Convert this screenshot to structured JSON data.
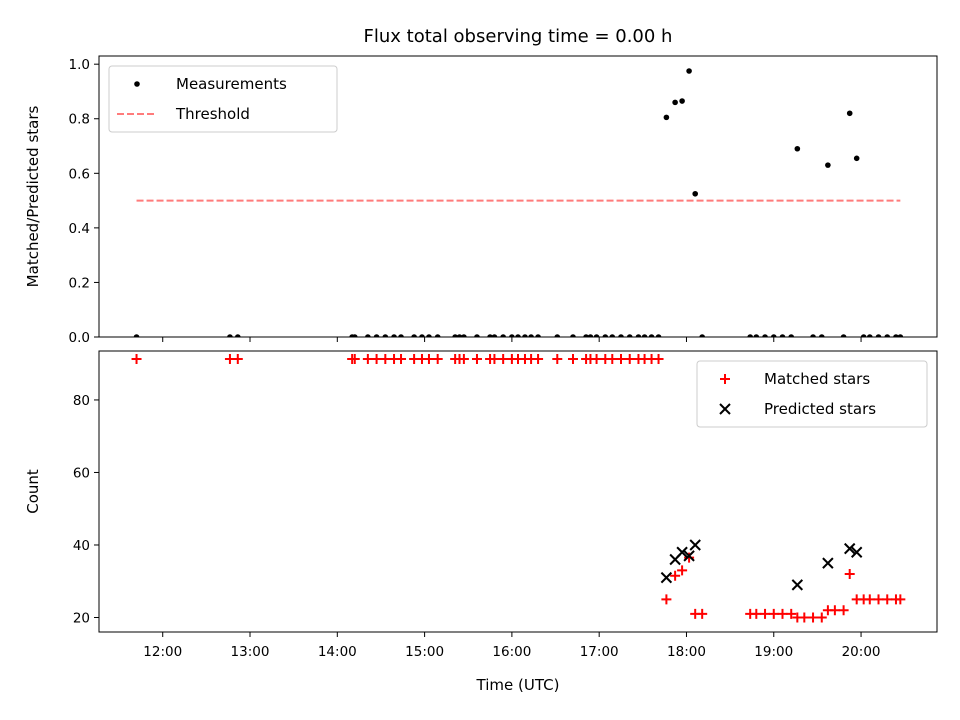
{
  "figure": {
    "title": "Flux total observing time = 0.00 h",
    "xlabel": "Time (UTC)"
  },
  "chart_data": [
    {
      "type": "scatter",
      "ylabel": "Matched/Predicted stars",
      "ylim": [
        0,
        1.03
      ],
      "yticks": [
        0.0,
        0.2,
        0.4,
        0.6,
        0.8,
        1.0
      ],
      "ytick_labels": [
        "0.0",
        "0.2",
        "0.4",
        "0.6",
        "0.8",
        "1.0"
      ],
      "legend_position": "top-left",
      "series": [
        {
          "name": "Measurements",
          "marker": "dot",
          "color": "#000000",
          "points": [
            [
              11.7,
              0
            ],
            [
              12.77,
              0
            ],
            [
              12.86,
              0
            ],
            [
              14.17,
              0
            ],
            [
              14.2,
              0
            ],
            [
              14.35,
              0
            ],
            [
              14.45,
              0
            ],
            [
              14.55,
              0
            ],
            [
              14.65,
              0
            ],
            [
              14.73,
              0
            ],
            [
              14.88,
              0
            ],
            [
              14.97,
              0
            ],
            [
              15.05,
              0
            ],
            [
              15.15,
              0
            ],
            [
              15.35,
              0
            ],
            [
              15.4,
              0
            ],
            [
              15.45,
              0
            ],
            [
              15.6,
              0
            ],
            [
              15.75,
              0
            ],
            [
              15.8,
              0
            ],
            [
              15.9,
              0
            ],
            [
              16.0,
              0
            ],
            [
              16.07,
              0
            ],
            [
              16.15,
              0
            ],
            [
              16.22,
              0
            ],
            [
              16.3,
              0
            ],
            [
              16.52,
              0
            ],
            [
              16.7,
              0
            ],
            [
              16.85,
              0
            ],
            [
              16.9,
              0
            ],
            [
              16.97,
              0
            ],
            [
              17.07,
              0
            ],
            [
              17.15,
              0
            ],
            [
              17.25,
              0
            ],
            [
              17.35,
              0
            ],
            [
              17.45,
              0
            ],
            [
              17.52,
              0
            ],
            [
              17.6,
              0
            ],
            [
              17.68,
              0
            ],
            [
              17.77,
              0.805
            ],
            [
              17.87,
              0.86
            ],
            [
              17.95,
              0.865
            ],
            [
              18.03,
              0.975
            ],
            [
              18.1,
              0.525
            ],
            [
              18.18,
              0
            ],
            [
              18.73,
              0
            ],
            [
              18.8,
              0
            ],
            [
              18.9,
              0
            ],
            [
              19.0,
              0
            ],
            [
              19.1,
              0
            ],
            [
              19.2,
              0
            ],
            [
              19.27,
              0.69
            ],
            [
              19.45,
              0
            ],
            [
              19.55,
              0
            ],
            [
              19.62,
              0.63
            ],
            [
              19.8,
              0
            ],
            [
              19.87,
              0.82
            ],
            [
              19.95,
              0.655
            ],
            [
              20.03,
              0
            ],
            [
              20.1,
              0
            ],
            [
              20.2,
              0
            ],
            [
              20.3,
              0
            ],
            [
              20.4,
              0
            ],
            [
              20.45,
              0
            ]
          ]
        },
        {
          "name": "Threshold",
          "marker": "dashed",
          "color": "#ff7b7b",
          "points": [
            [
              11.7,
              0.5
            ],
            [
              20.45,
              0.5
            ]
          ]
        }
      ]
    },
    {
      "type": "scatter",
      "ylabel": "Count",
      "xlabel": "Time (UTC)",
      "xlim": [
        11.27,
        20.87
      ],
      "xticks": [
        12,
        13,
        14,
        15,
        16,
        17,
        18,
        19,
        20
      ],
      "xtick_labels": [
        "12:00",
        "13:00",
        "14:00",
        "15:00",
        "16:00",
        "17:00",
        "18:00",
        "19:00",
        "20:00"
      ],
      "ylim": [
        16,
        93.5
      ],
      "yticks": [
        20,
        40,
        60,
        80
      ],
      "ytick_labels": [
        "20",
        "40",
        "60",
        "80"
      ],
      "legend_position": "top-right",
      "series": [
        {
          "name": "Matched stars",
          "marker": "plus",
          "color": "#ff0000",
          "points": [
            [
              11.7,
              91.3
            ],
            [
              12.77,
              91.3
            ],
            [
              12.86,
              91.3
            ],
            [
              14.17,
              91.3
            ],
            [
              14.2,
              91.3
            ],
            [
              14.35,
              91.3
            ],
            [
              14.45,
              91.3
            ],
            [
              14.55,
              91.3
            ],
            [
              14.65,
              91.3
            ],
            [
              14.73,
              91.3
            ],
            [
              14.88,
              91.3
            ],
            [
              14.97,
              91.3
            ],
            [
              15.05,
              91.3
            ],
            [
              15.15,
              91.3
            ],
            [
              15.35,
              91.3
            ],
            [
              15.4,
              91.3
            ],
            [
              15.45,
              91.3
            ],
            [
              15.6,
              91.3
            ],
            [
              15.75,
              91.3
            ],
            [
              15.8,
              91.3
            ],
            [
              15.9,
              91.3
            ],
            [
              16.0,
              91.3
            ],
            [
              16.07,
              91.3
            ],
            [
              16.15,
              91.3
            ],
            [
              16.22,
              91.3
            ],
            [
              16.3,
              91.3
            ],
            [
              16.52,
              91.3
            ],
            [
              16.7,
              91.3
            ],
            [
              16.85,
              91.3
            ],
            [
              16.9,
              91.3
            ],
            [
              16.97,
              91.3
            ],
            [
              17.07,
              91.3
            ],
            [
              17.15,
              91.3
            ],
            [
              17.25,
              91.3
            ],
            [
              17.35,
              91.3
            ],
            [
              17.45,
              91.3
            ],
            [
              17.52,
              91.3
            ],
            [
              17.6,
              91.3
            ],
            [
              17.68,
              91.3
            ],
            [
              17.77,
              25
            ],
            [
              17.87,
              31.5
            ],
            [
              17.95,
              33
            ],
            [
              18.03,
              36.5
            ],
            [
              18.1,
              21
            ],
            [
              18.18,
              21
            ],
            [
              18.73,
              21
            ],
            [
              18.8,
              21
            ],
            [
              18.9,
              21
            ],
            [
              19.0,
              21
            ],
            [
              19.1,
              21
            ],
            [
              19.2,
              21
            ],
            [
              19.27,
              20
            ],
            [
              19.35,
              20
            ],
            [
              19.45,
              20
            ],
            [
              19.55,
              20
            ],
            [
              19.62,
              22
            ],
            [
              19.7,
              22
            ],
            [
              19.8,
              22
            ],
            [
              19.87,
              32
            ],
            [
              19.95,
              25
            ],
            [
              20.03,
              25
            ],
            [
              20.1,
              25
            ],
            [
              20.2,
              25
            ],
            [
              20.3,
              25
            ],
            [
              20.4,
              25
            ],
            [
              20.45,
              25
            ]
          ]
        },
        {
          "name": "Predicted stars",
          "marker": "x",
          "color": "#000000",
          "points": [
            [
              17.77,
              31
            ],
            [
              17.87,
              36
            ],
            [
              17.95,
              38
            ],
            [
              18.03,
              37
            ],
            [
              18.1,
              40
            ],
            [
              19.27,
              29
            ],
            [
              19.62,
              35
            ],
            [
              19.87,
              39
            ],
            [
              19.95,
              38
            ]
          ]
        }
      ]
    }
  ]
}
